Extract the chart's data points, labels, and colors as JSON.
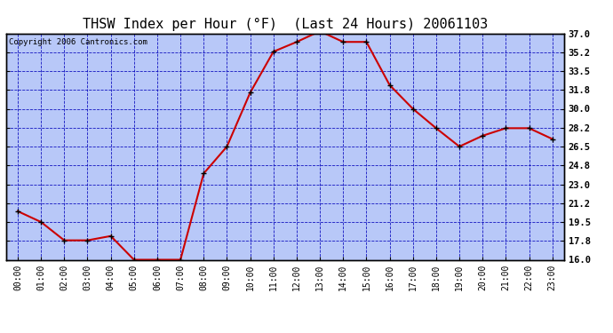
{
  "title": "THSW Index per Hour (°F)  (Last 24 Hours) 20061103",
  "copyright": "Copyright 2006 Cantronics.com",
  "hours": [
    "00:00",
    "01:00",
    "02:00",
    "03:00",
    "04:00",
    "05:00",
    "06:00",
    "07:00",
    "08:00",
    "09:00",
    "10:00",
    "11:00",
    "12:00",
    "13:00",
    "14:00",
    "15:00",
    "16:00",
    "17:00",
    "18:00",
    "19:00",
    "20:00",
    "21:00",
    "22:00",
    "23:00"
  ],
  "values": [
    20.5,
    19.5,
    17.8,
    17.8,
    18.2,
    16.0,
    16.0,
    16.0,
    24.0,
    26.5,
    31.5,
    35.3,
    36.2,
    37.2,
    36.2,
    36.2,
    32.2,
    30.0,
    28.2,
    26.5,
    27.5,
    28.2,
    28.2,
    27.2
  ],
  "ylim": [
    16.0,
    37.0
  ],
  "yticks": [
    16.0,
    17.8,
    19.5,
    21.2,
    23.0,
    24.8,
    26.5,
    28.2,
    30.0,
    31.8,
    33.5,
    35.2,
    37.0
  ],
  "line_color": "#cc0000",
  "marker_color": "#000000",
  "bg_color": "#b8c8f8",
  "grid_color": "#0000bb",
  "border_color": "#000000",
  "title_color": "#000000",
  "title_fontsize": 11,
  "copyright_fontsize": 6.5,
  "tick_fontsize": 7.5,
  "xlabel_fontsize": 7
}
